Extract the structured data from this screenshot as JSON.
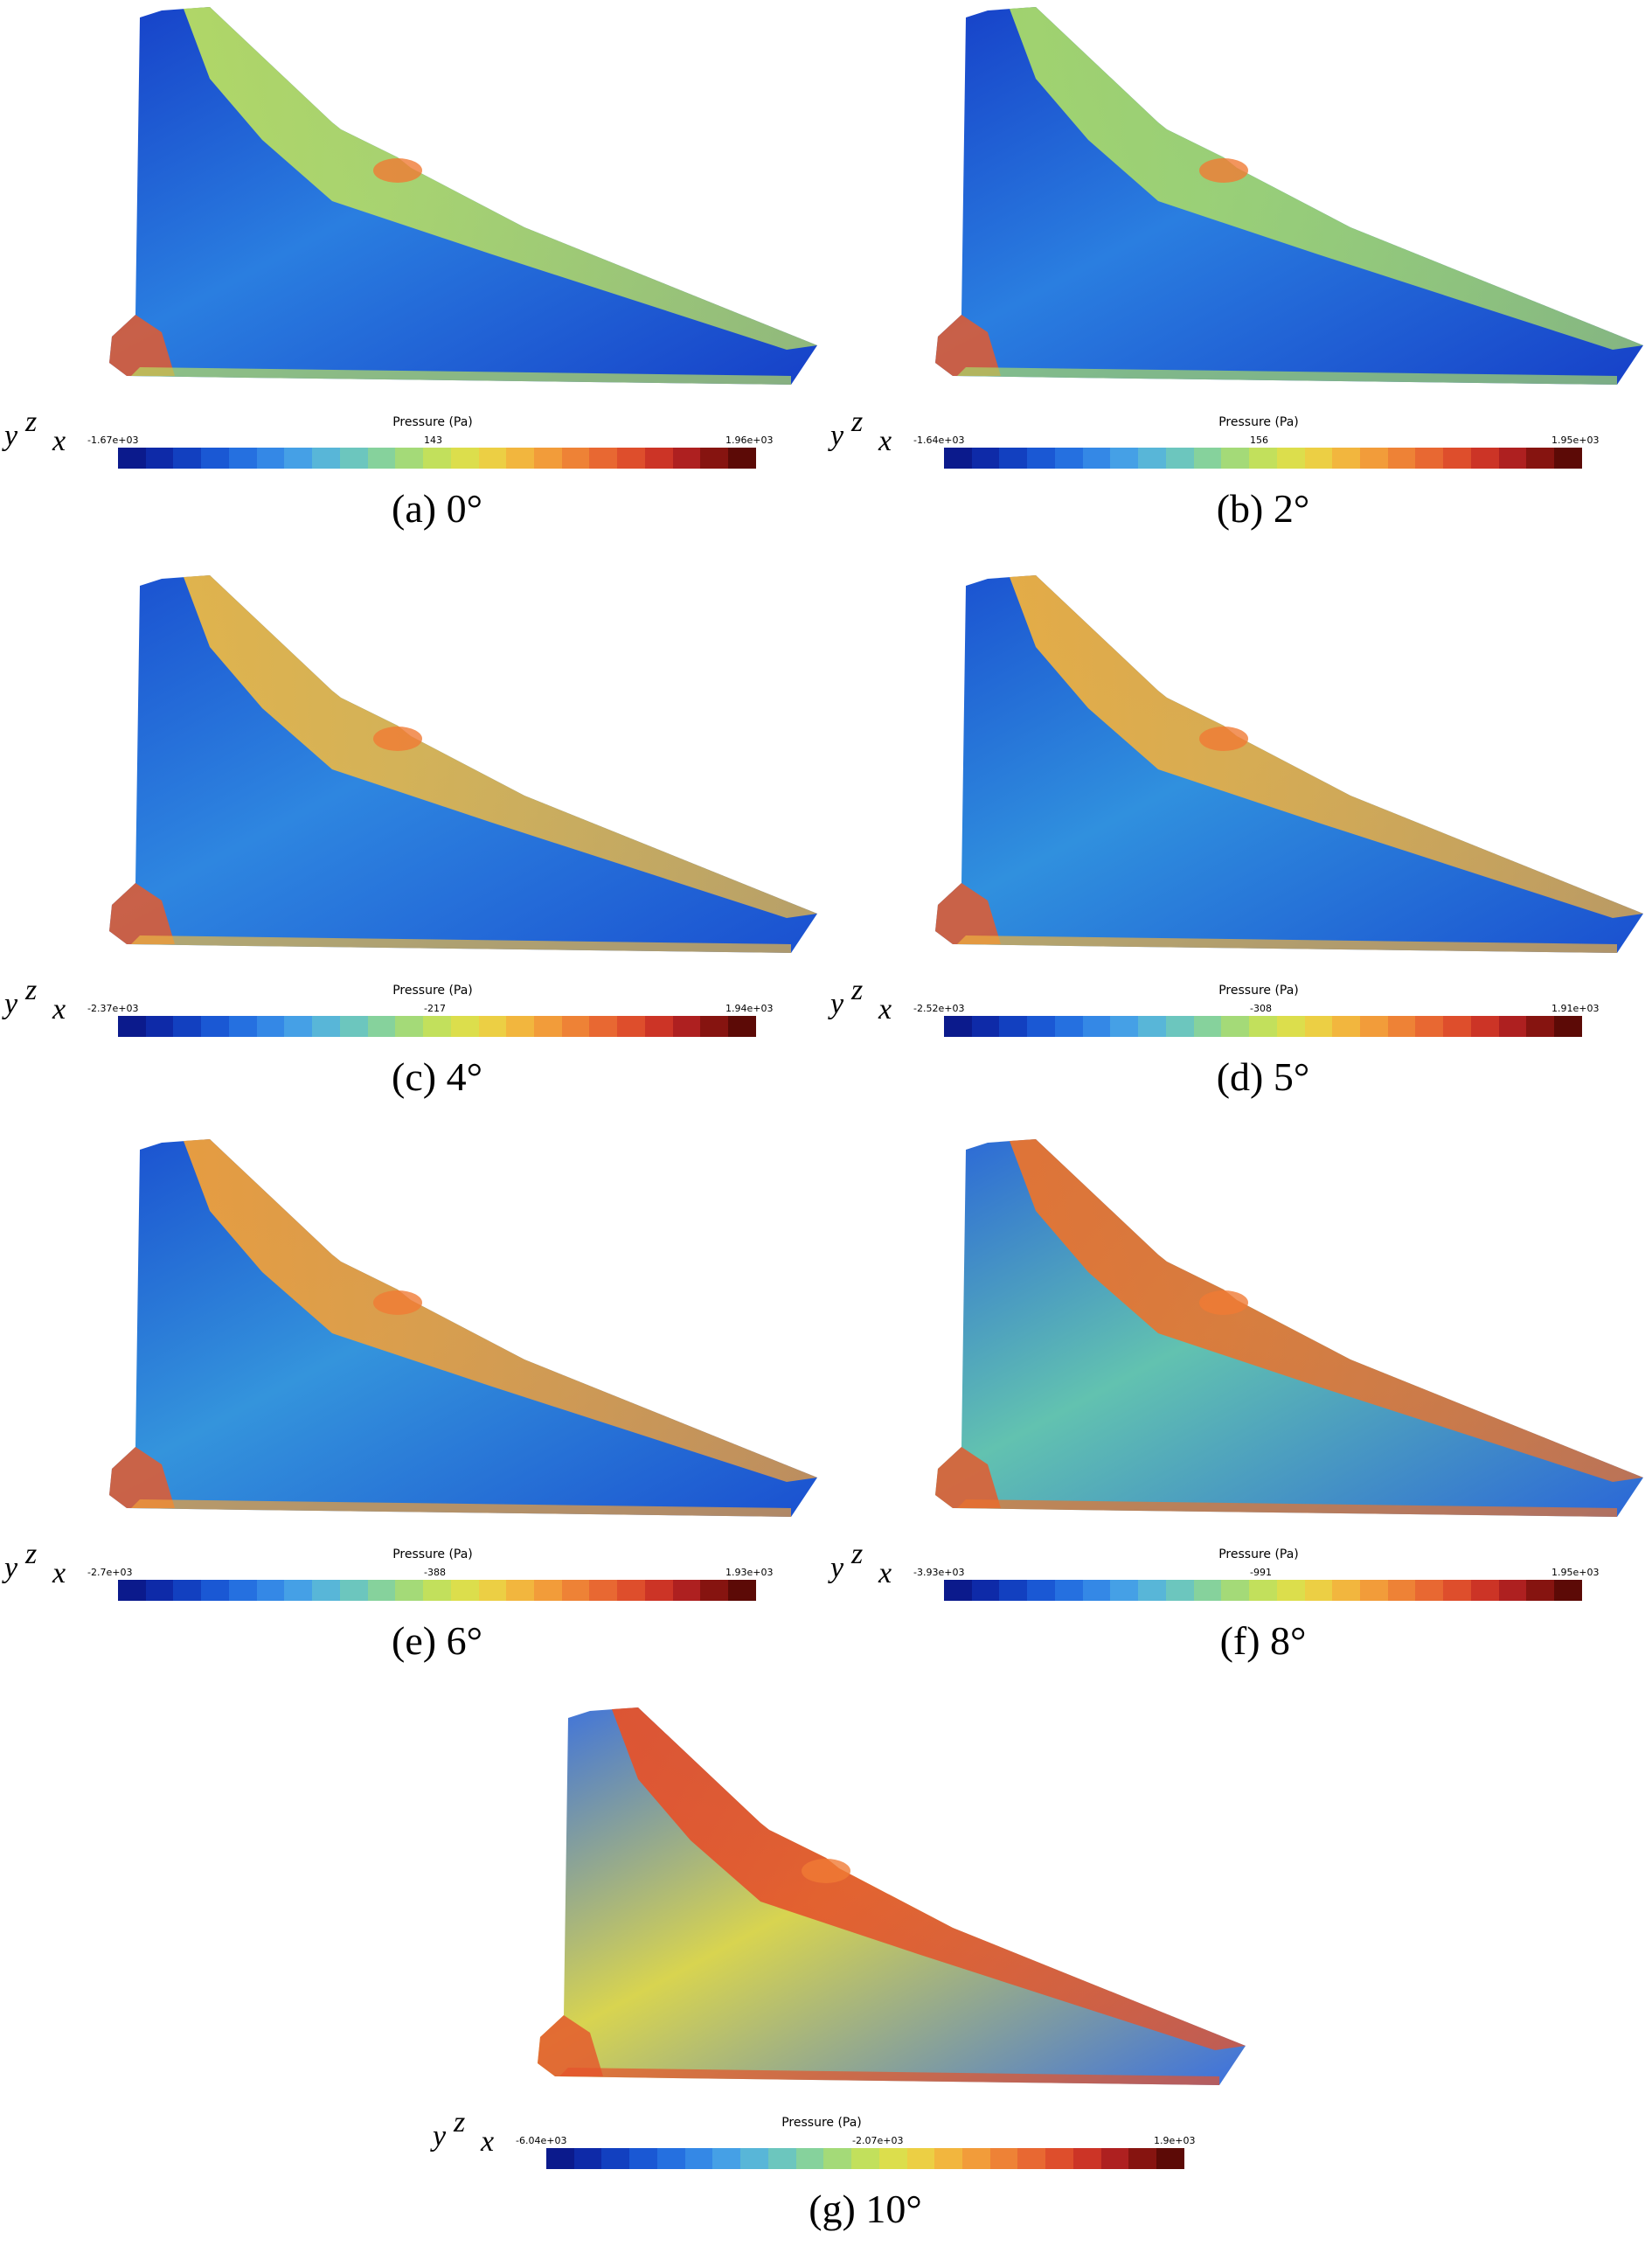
{
  "legend_title": "Pressure (Pa)",
  "axis_labels": {
    "y": "y",
    "z": "z",
    "x": "x"
  },
  "colormap": [
    "#0b1a8c",
    "#0e2aa8",
    "#1240c0",
    "#1a58d4",
    "#2570e0",
    "#3488e6",
    "#45a0e6",
    "#58b6d8",
    "#6cc6be",
    "#86d29c",
    "#a4da78",
    "#c2e05c",
    "#dcde4c",
    "#eccf44",
    "#f2b63e",
    "#f29c3a",
    "#ee8236",
    "#e86832",
    "#de4e2c",
    "#cc3426",
    "#ae2020",
    "#861410",
    "#5c0a06"
  ],
  "panels": [
    {
      "id": "a",
      "caption": "(a) 0°",
      "min_label": "-1.67e+03",
      "mid_label": "143",
      "max_label": "1.96e+03"
    },
    {
      "id": "b",
      "caption": "(b) 2°",
      "min_label": "-1.64e+03",
      "mid_label": "156",
      "max_label": "1.95e+03"
    },
    {
      "id": "c",
      "caption": "(c) 4°",
      "min_label": "-2.37e+03",
      "mid_label": "-217",
      "max_label": "1.94e+03"
    },
    {
      "id": "d",
      "caption": "(d) 5°",
      "min_label": "-2.52e+03",
      "mid_label": "-308",
      "max_label": "1.91e+03"
    },
    {
      "id": "e",
      "caption": "(e) 6°",
      "min_label": "-2.7e+03",
      "mid_label": "-388",
      "max_label": "1.93e+03"
    },
    {
      "id": "f",
      "caption": "(f) 8°",
      "min_label": "-3.93e+03",
      "mid_label": "-991",
      "max_label": "1.95e+03"
    },
    {
      "id": "g",
      "caption": "(g) 10°",
      "min_label": "-6.04e+03",
      "mid_label": "-2.07e+03",
      "max_label": "1.9e+03"
    }
  ]
}
